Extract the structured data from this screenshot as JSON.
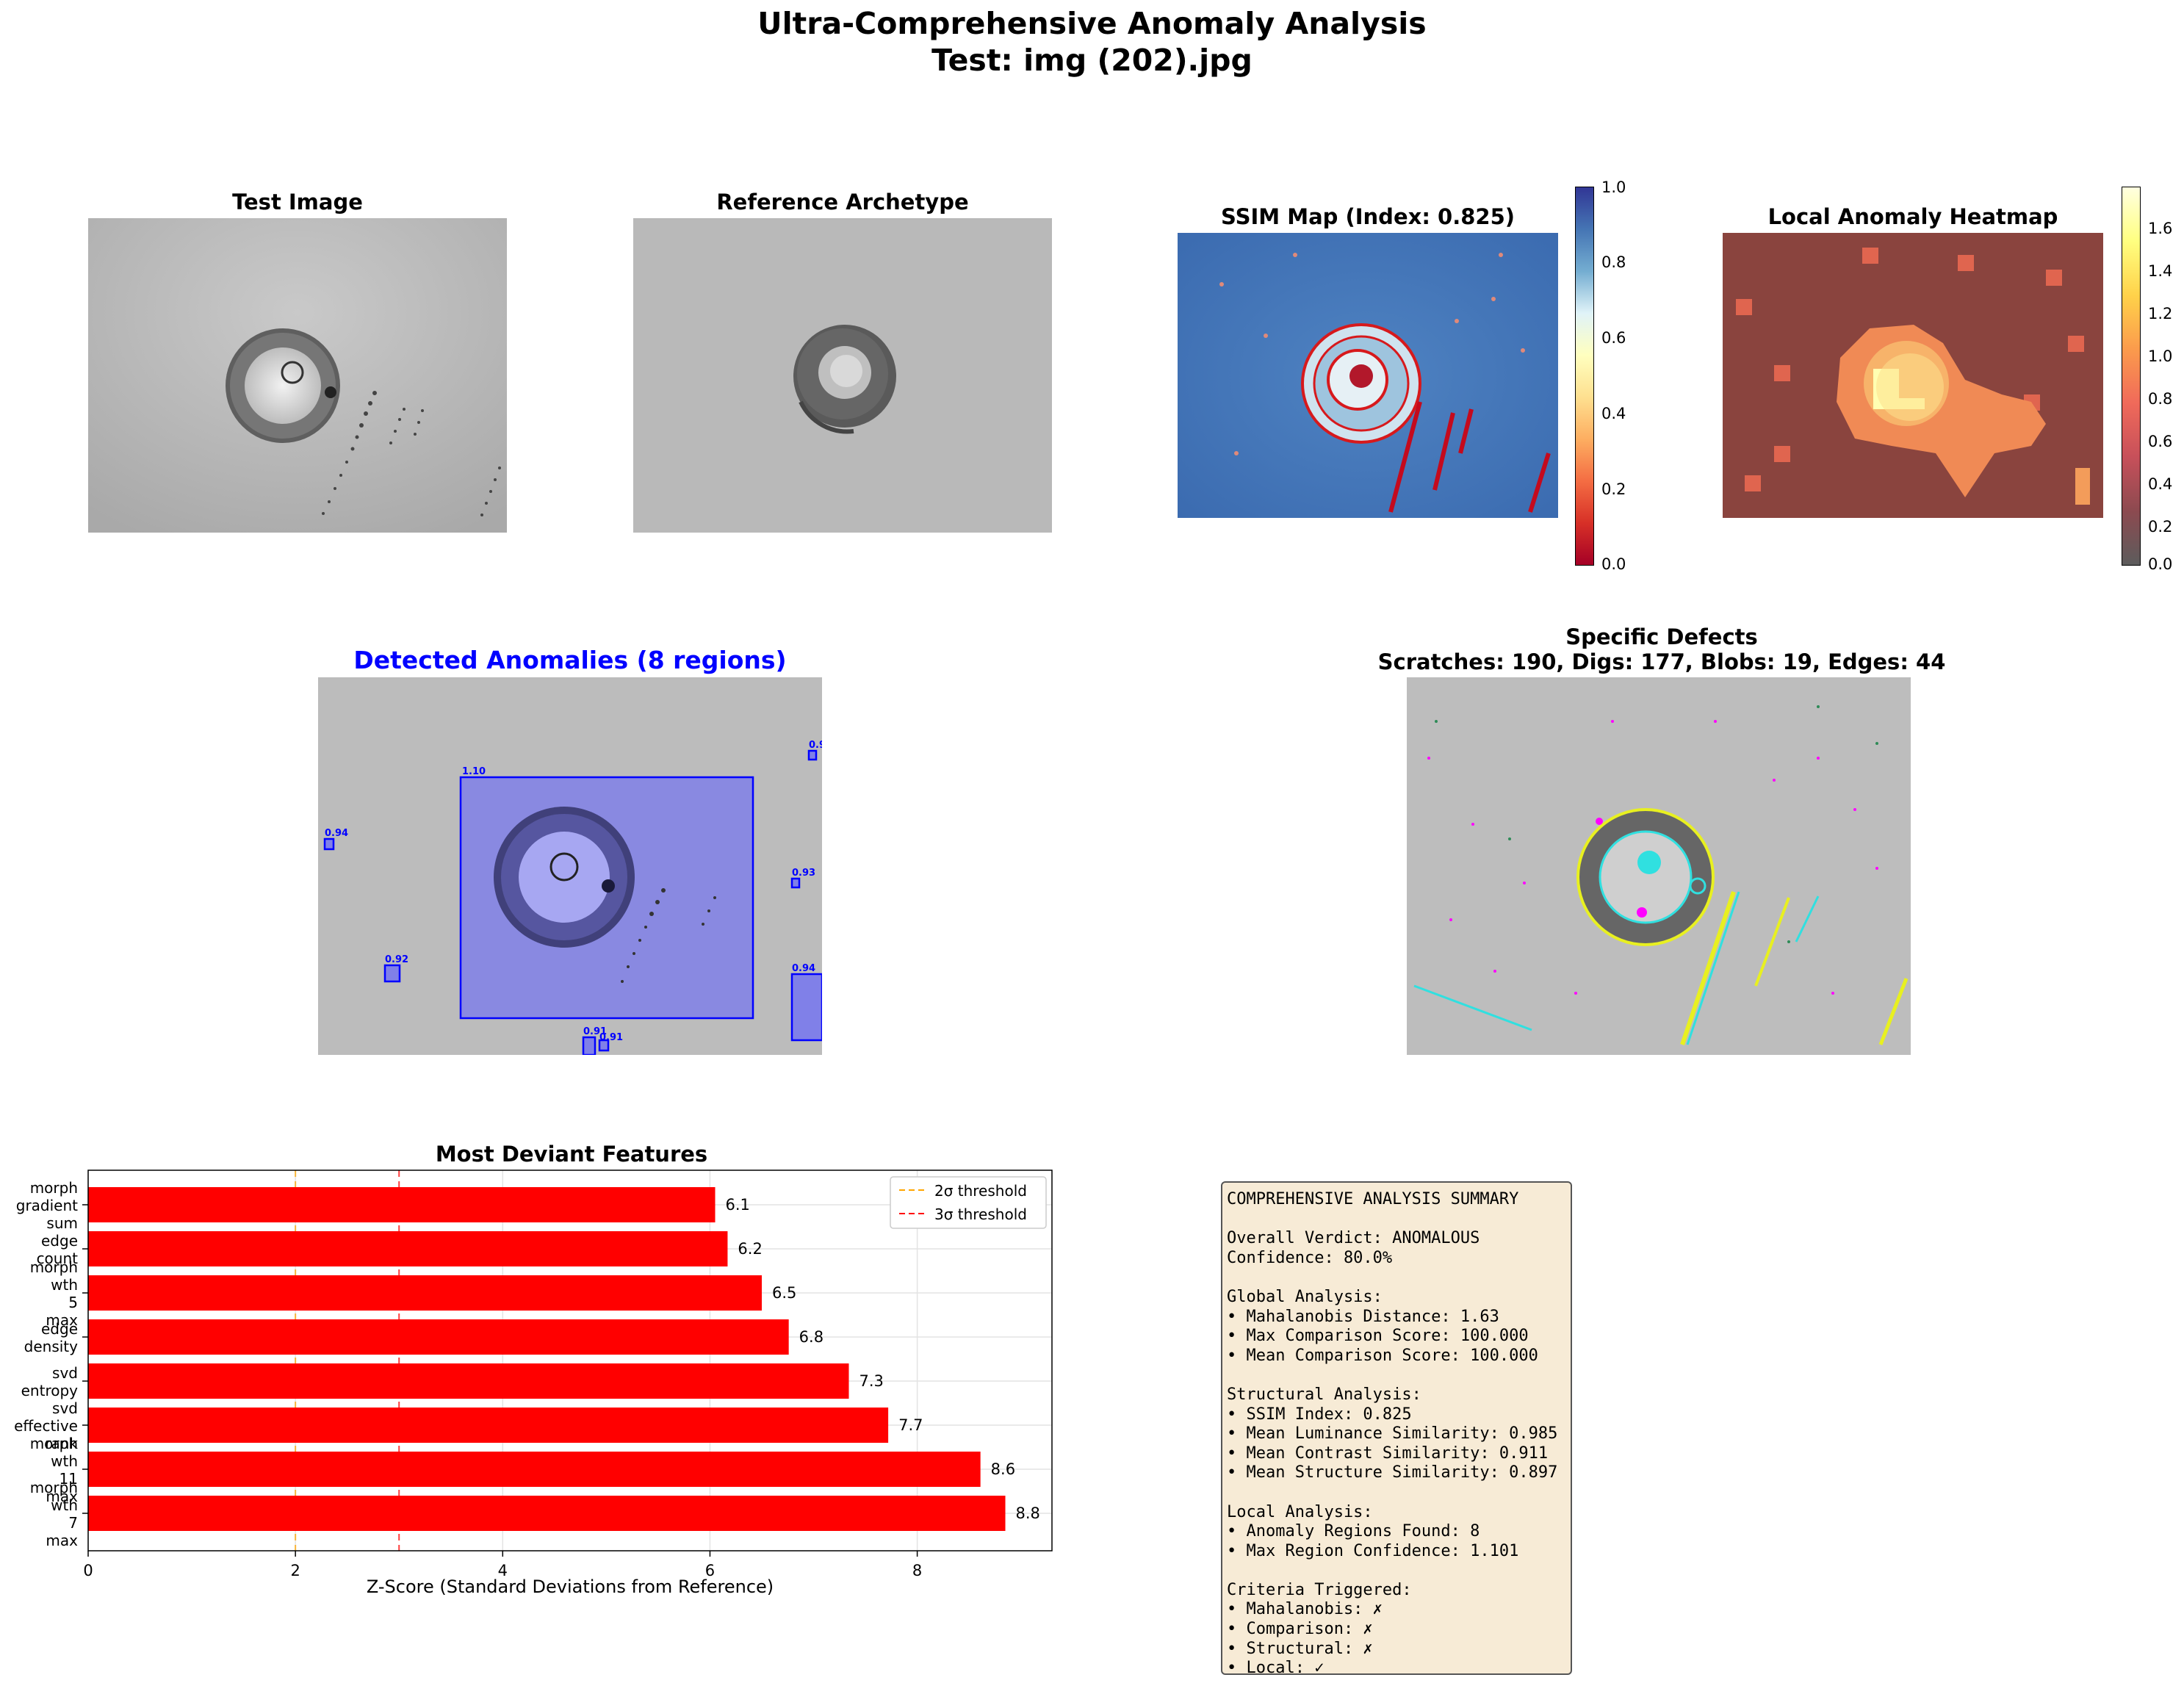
{
  "header": {
    "title_line1": "Ultra-Comprehensive Anomaly Analysis",
    "title_line2": "Test: img (202).jpg"
  },
  "panels": {
    "test_image": "Test Image",
    "reference": "Reference Archetype",
    "ssim": "SSIM Map (Index: 0.825)",
    "heatmap": "Local Anomaly Heatmap",
    "detected": "Detected Anomalies (8 regions)",
    "defects_line1": "Specific Defects",
    "defects_line2": "Scratches: 190, Digs: 177, Blobs: 19, Edges: 44"
  },
  "colorbars": {
    "ssim_ticks": [
      "1.0",
      "0.8",
      "0.6",
      "0.4",
      "0.2",
      "0.0"
    ],
    "heat_ticks": [
      "1.6",
      "1.4",
      "1.2",
      "1.0",
      "0.8",
      "0.6",
      "0.4",
      "0.2",
      "0.0"
    ]
  },
  "detections": {
    "labels": [
      "1.10",
      "0.9",
      "0.94",
      "0.93",
      "0.92",
      "0.94",
      "0.91",
      "0.91"
    ],
    "color": "#0000ff"
  },
  "chart_data": {
    "type": "bar",
    "orientation": "horizontal",
    "title": "Most Deviant Features",
    "xlabel": "Z-Score (Standard Deviations from Reference)",
    "xlim": [
      0,
      9.3
    ],
    "xticks": [
      "0",
      "2",
      "4",
      "6",
      "8"
    ],
    "categories": [
      [
        "morph",
        "gradient",
        "sum"
      ],
      [
        "edge",
        "count"
      ],
      [
        "morph",
        "wth",
        "5",
        "max"
      ],
      [
        "edge",
        "density"
      ],
      [
        "svd",
        "entropy"
      ],
      [
        "svd",
        "effective",
        "rank"
      ],
      [
        "morph",
        "wth",
        "11",
        "max"
      ],
      [
        "morph",
        "wth",
        "7",
        "max"
      ]
    ],
    "values": [
      6.05,
      6.17,
      6.5,
      6.76,
      7.34,
      7.72,
      8.61,
      8.85
    ],
    "value_labels": [
      "6.1",
      "6.2",
      "6.5",
      "6.8",
      "7.3",
      "7.7",
      "8.6",
      "8.8"
    ],
    "bar_color": "#ff0000",
    "grid": true,
    "thresholds": [
      {
        "name": "2σ threshold",
        "value": 2,
        "color": "#ffa500"
      },
      {
        "name": "3σ threshold",
        "value": 3,
        "color": "#ff0000"
      }
    ],
    "legend": "top-right"
  },
  "summary": {
    "text": "COMPREHENSIVE ANALYSIS SUMMARY\n\nOverall Verdict: ANOMALOUS\nConfidence: 80.0%\n\nGlobal Analysis:\n• Mahalanobis Distance: 1.63\n• Max Comparison Score: 100.000\n• Mean Comparison Score: 100.000\n\nStructural Analysis:\n• SSIM Index: 0.825\n• Mean Luminance Similarity: 0.985\n• Mean Contrast Similarity: 0.911\n• Mean Structure Similarity: 0.897\n\nLocal Analysis:\n• Anomaly Regions Found: 8\n• Max Region Confidence: 1.101\n\nCriteria Triggered:\n• Mahalanobis: ✗\n• Comparison: ✗\n• Structural: ✗\n• Local: ✓"
  }
}
